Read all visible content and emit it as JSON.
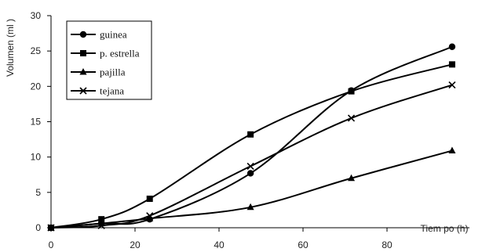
{
  "chart_data": {
    "type": "line",
    "title": "",
    "xlabel": "Tiem po (h)",
    "ylabel": "Volumen (ml )",
    "xlim": [
      0,
      96
    ],
    "ylim": [
      0,
      30
    ],
    "xticks": [
      "0",
      "20",
      "40",
      "60",
      "80"
    ],
    "yticks": [
      "0",
      "5",
      "10",
      "15",
      "20",
      "25",
      "30"
    ],
    "grid": false,
    "legend_position": "top-left",
    "series": [
      {
        "name": "guinea",
        "marker": "circle",
        "x": [
          0,
          12,
          23.5,
          47.5,
          71.5,
          95.5
        ],
        "y": [
          0,
          0.6,
          1.2,
          7.7,
          19.4,
          25.6
        ]
      },
      {
        "name": "p. estrella",
        "marker": "square",
        "x": [
          0,
          12,
          23.5,
          47.5,
          71.5,
          95.5
        ],
        "y": [
          0,
          1.2,
          4.1,
          13.2,
          19.3,
          23.1
        ]
      },
      {
        "name": "pajilla",
        "marker": "triangle",
        "x": [
          0,
          12,
          23.5,
          47.5,
          71.5,
          95.5
        ],
        "y": [
          0,
          0.6,
          1.3,
          2.9,
          7.0,
          10.9
        ]
      },
      {
        "name": "tejana",
        "marker": "x",
        "x": [
          0,
          12,
          23.5,
          47.5,
          71.5,
          95.5
        ],
        "y": [
          0,
          0.3,
          1.7,
          8.7,
          15.5,
          20.2
        ]
      }
    ]
  }
}
